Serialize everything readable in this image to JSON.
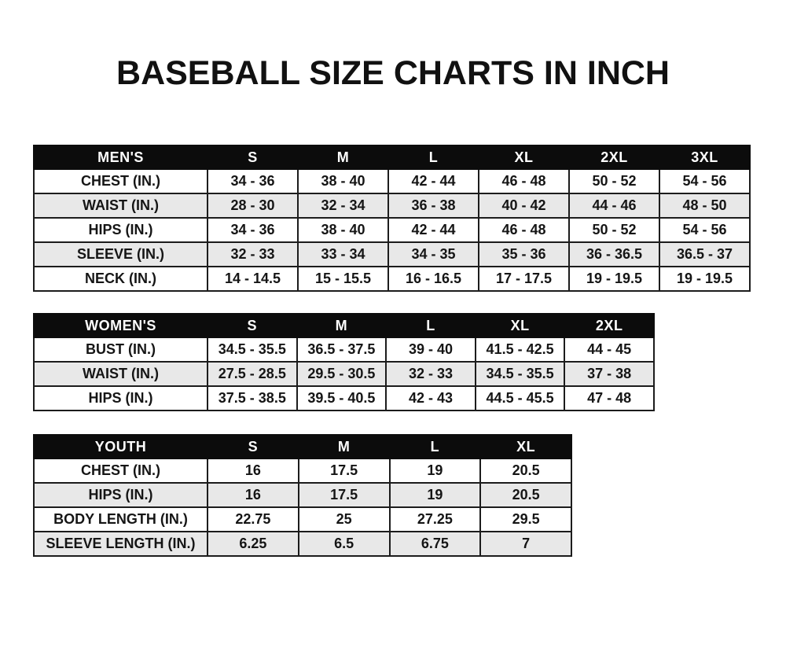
{
  "page": {
    "title": "BASEBALL SIZE CHARTS IN INCH"
  },
  "colors": {
    "header_bg": "#0c0c0c",
    "row_alt": "#e8e8e8",
    "border": "#1c1c1c",
    "text": "#151515",
    "page_bg": "#ffffff"
  },
  "tables": [
    {
      "id": "mens",
      "header": [
        "MEN'S",
        "S",
        "M",
        "L",
        "XL",
        "2XL",
        "3XL"
      ],
      "rows": [
        [
          "CHEST (IN.)",
          "34 - 36",
          "38 - 40",
          "42 - 44",
          "46 - 48",
          "50 - 52",
          "54 - 56"
        ],
        [
          "WAIST (IN.)",
          "28 - 30",
          "32 - 34",
          "36 - 38",
          "40 - 42",
          "44 - 46",
          "48 - 50"
        ],
        [
          "HIPS (IN.)",
          "34 - 36",
          "38 - 40",
          "42 - 44",
          "46 - 48",
          "50 - 52",
          "54 - 56"
        ],
        [
          "SLEEVE (IN.)",
          "32 - 33",
          "33 - 34",
          "34 - 35",
          "35 - 36",
          "36 - 36.5",
          "36.5 - 37"
        ],
        [
          "NECK (IN.)",
          "14 - 14.5",
          "15 - 15.5",
          "16 - 16.5",
          "17 - 17.5",
          "19 - 19.5",
          "19 - 19.5"
        ]
      ]
    },
    {
      "id": "womens",
      "header": [
        "WOMEN'S",
        "S",
        "M",
        "L",
        "XL",
        "2XL"
      ],
      "rows": [
        [
          "BUST (IN.)",
          "34.5 - 35.5",
          "36.5 - 37.5",
          "39 - 40",
          "41.5 - 42.5",
          "44 - 45"
        ],
        [
          "WAIST (IN.)",
          "27.5 - 28.5",
          "29.5 - 30.5",
          "32 - 33",
          "34.5 - 35.5",
          "37 - 38"
        ],
        [
          "HIPS (IN.)",
          "37.5 - 38.5",
          "39.5 - 40.5",
          "42 - 43",
          "44.5 - 45.5",
          "47 - 48"
        ]
      ]
    },
    {
      "id": "youth",
      "header": [
        "YOUTH",
        "S",
        "M",
        "L",
        "XL"
      ],
      "rows": [
        [
          "CHEST (IN.)",
          "16",
          "17.5",
          "19",
          "20.5"
        ],
        [
          "HIPS (IN.)",
          "16",
          "17.5",
          "19",
          "20.5"
        ],
        [
          "BODY LENGTH (IN.)",
          "22.75",
          "25",
          "27.25",
          "29.5"
        ],
        [
          "SLEEVE LENGTH (IN.)",
          "6.25",
          "6.5",
          "6.75",
          "7"
        ]
      ]
    }
  ]
}
